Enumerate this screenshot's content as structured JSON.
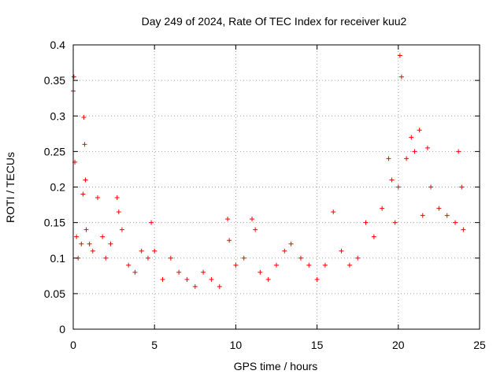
{
  "chart_data": {
    "type": "scatter",
    "title": "Day 249 of 2024, Rate Of TEC Index for receiver kuu2",
    "xlabel": "GPS time / hours",
    "ylabel": "ROTI / TECUs",
    "xlim": [
      0,
      25
    ],
    "ylim": [
      0,
      0.4
    ],
    "xticks": [
      0,
      5,
      10,
      15,
      20,
      25
    ],
    "xtick_labels": [
      "0",
      "5",
      "10",
      "15",
      "20",
      "25"
    ],
    "yticks": [
      0,
      0.05,
      0.1,
      0.15,
      0.2,
      0.25,
      0.3,
      0.35,
      0.4
    ],
    "ytick_labels": [
      "0",
      "0.05",
      "0.1",
      "0.15",
      "0.2",
      "0.25",
      "0.3",
      "0.35",
      "0.4"
    ],
    "grid": true,
    "marker": "plus",
    "color": "#ff0000",
    "series": [
      {
        "x": [
          0.0,
          0.04,
          0.1,
          0.2,
          0.3,
          0.5,
          0.6,
          0.65,
          0.7,
          0.75,
          0.8,
          1.0,
          1.2,
          1.5,
          1.8,
          2.0,
          2.3,
          2.7,
          2.8,
          3.0,
          3.4,
          3.8,
          4.2,
          4.6,
          4.8,
          5.0,
          5.5,
          6.0,
          6.5,
          7.0,
          7.5,
          8.0,
          8.5,
          9.0,
          9.5,
          9.6,
          10.0,
          10.5,
          11.0,
          11.2,
          11.5,
          12.0,
          12.5,
          13.0,
          13.4,
          14.0,
          14.5,
          15.0,
          15.5,
          16.0,
          16.5,
          17.0,
          17.5,
          18.0,
          18.5,
          19.0,
          19.4,
          19.6,
          19.8,
          20.0,
          20.1,
          20.2,
          20.5,
          20.8,
          21.0,
          21.3,
          21.5,
          21.8,
          22.0,
          22.5,
          23.0,
          23.5,
          23.7,
          23.9,
          24.0
        ],
        "y": [
          0.335,
          0.355,
          0.235,
          0.13,
          0.1,
          0.12,
          0.19,
          0.298,
          0.26,
          0.21,
          0.14,
          0.12,
          0.11,
          0.185,
          0.13,
          0.1,
          0.12,
          0.185,
          0.165,
          0.14,
          0.09,
          0.08,
          0.11,
          0.1,
          0.15,
          0.11,
          0.07,
          0.1,
          0.08,
          0.07,
          0.06,
          0.08,
          0.07,
          0.06,
          0.155,
          0.125,
          0.09,
          0.1,
          0.155,
          0.14,
          0.08,
          0.07,
          0.09,
          0.11,
          0.12,
          0.1,
          0.09,
          0.07,
          0.09,
          0.165,
          0.11,
          0.09,
          0.1,
          0.15,
          0.13,
          0.17,
          0.24,
          0.21,
          0.15,
          0.2,
          0.385,
          0.355,
          0.24,
          0.27,
          0.25,
          0.28,
          0.16,
          0.255,
          0.2,
          0.17,
          0.16,
          0.15,
          0.25,
          0.2,
          0.14
        ]
      }
    ]
  }
}
